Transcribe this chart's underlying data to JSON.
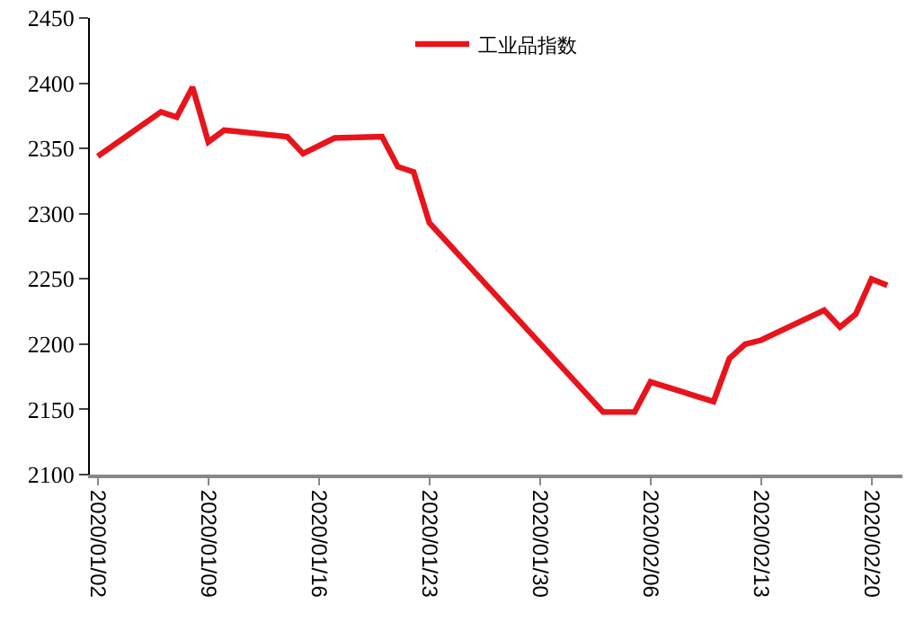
{
  "chart_data": {
    "type": "line",
    "x": [
      "2020-01-02",
      "2020-01-06",
      "2020-01-07",
      "2020-01-08",
      "2020-01-09",
      "2020-01-10",
      "2020-01-14",
      "2020-01-15",
      "2020-01-17",
      "2020-01-20",
      "2020-01-21",
      "2020-01-22",
      "2020-01-23",
      "2020-02-03",
      "2020-02-05",
      "2020-02-06",
      "2020-02-10",
      "2020-02-11",
      "2020-02-12",
      "2020-02-13",
      "2020-02-17",
      "2020-02-18",
      "2020-02-19",
      "2020-02-20",
      "2020-02-21"
    ],
    "series": [
      {
        "name": "工业品指数",
        "color": "#e8141c",
        "values": [
          2344,
          2378,
          2374,
          2397,
          2355,
          2364,
          2359,
          2346,
          2358,
          2359,
          2336,
          2332,
          2293,
          2148,
          2148,
          2171,
          2156,
          2189,
          2200,
          2203,
          2226,
          2213,
          2223,
          2250,
          2245
        ]
      }
    ],
    "xlim": [
      "2020-01-01T12:00",
      "2020-02-21T23:00"
    ],
    "xticks": [
      {
        "value": "2020-01-02",
        "label": "2020/01/02"
      },
      {
        "value": "2020-01-09",
        "label": "2020/01/09"
      },
      {
        "value": "2020-01-16",
        "label": "2020/01/16"
      },
      {
        "value": "2020-01-23",
        "label": "2020/01/23"
      },
      {
        "value": "2020-01-30",
        "label": "2020/01/30"
      },
      {
        "value": "2020-02-06",
        "label": "2020/02/06"
      },
      {
        "value": "2020-02-13",
        "label": "2020/02/13"
      },
      {
        "value": "2020-02-20",
        "label": "2020/02/20"
      }
    ],
    "ylim": [
      2100,
      2450
    ],
    "yticks": [
      2100,
      2150,
      2200,
      2250,
      2300,
      2350,
      2400,
      2450
    ],
    "grid": false,
    "legend": "top",
    "marker": "none",
    "line_style": "solid"
  }
}
